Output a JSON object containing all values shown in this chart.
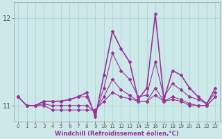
{
  "background_color": "#cce8e8",
  "line_color": "#993399",
  "xlabel": "Windchill (Refroidissement éolien,°C)",
  "ylim": [
    10.82,
    12.18
  ],
  "xlim": [
    -0.5,
    23.5
  ],
  "yticks": [
    11,
    12
  ],
  "xtick_labels": [
    "0",
    "1",
    "2",
    "3",
    "4",
    "5",
    "6",
    "7",
    "8",
    "9",
    "10",
    "11",
    "12",
    "13",
    "14",
    "15",
    "16",
    "17",
    "18",
    "19",
    "20",
    "21",
    "22",
    "23"
  ],
  "line1": [
    11.1,
    11.0,
    11.0,
    11.0,
    10.95,
    10.95,
    10.95,
    10.95,
    10.95,
    10.95,
    11.05,
    11.15,
    11.1,
    11.08,
    11.05,
    11.05,
    11.12,
    11.05,
    11.07,
    11.05,
    11.0,
    11.0,
    11.0,
    11.1
  ],
  "line2": [
    11.1,
    11.0,
    11.0,
    11.02,
    11.0,
    11.0,
    11.0,
    11.0,
    11.0,
    10.93,
    11.1,
    11.3,
    11.18,
    11.12,
    11.05,
    11.05,
    11.2,
    11.05,
    11.1,
    11.07,
    11.02,
    11.0,
    11.0,
    11.1
  ],
  "line3": [
    11.1,
    11.0,
    11.0,
    11.05,
    11.05,
    11.05,
    11.07,
    11.1,
    11.1,
    10.9,
    11.2,
    11.6,
    11.4,
    11.3,
    11.1,
    11.12,
    11.5,
    11.1,
    11.25,
    11.18,
    11.1,
    11.07,
    11.02,
    11.15
  ],
  "line4": [
    11.1,
    11.0,
    11.0,
    11.05,
    11.05,
    11.05,
    11.07,
    11.1,
    11.15,
    10.87,
    11.35,
    11.85,
    11.65,
    11.5,
    11.07,
    11.2,
    12.05,
    11.07,
    11.4,
    11.35,
    11.2,
    11.1,
    11.02,
    11.2
  ]
}
